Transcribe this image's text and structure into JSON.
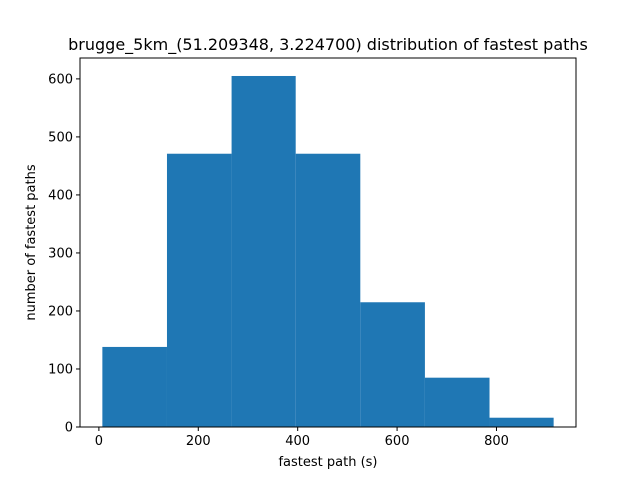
{
  "chart_data": {
    "type": "bar",
    "title": "brugge_5km_(51.209348, 3.224700) distribution of fastest paths",
    "xlabel": "fastest path (s)",
    "ylabel": "number of fastest paths",
    "bins": [
      {
        "x0": 7,
        "x1": 137,
        "count": 138
      },
      {
        "x0": 137,
        "x1": 267,
        "count": 471
      },
      {
        "x0": 267,
        "x1": 396,
        "count": 605
      },
      {
        "x0": 396,
        "x1": 526,
        "count": 471
      },
      {
        "x0": 526,
        "x1": 656,
        "count": 215
      },
      {
        "x0": 656,
        "x1": 786,
        "count": 85
      },
      {
        "x0": 786,
        "x1": 915,
        "count": 16
      }
    ],
    "xlim": [
      -38,
      960
    ],
    "ylim": [
      0,
      636
    ],
    "xticks": [
      0,
      200,
      400,
      600,
      800
    ],
    "yticks": [
      0,
      100,
      200,
      300,
      400,
      500,
      600
    ],
    "bar_color": "#1f77b4",
    "grid": false,
    "legend": false
  }
}
